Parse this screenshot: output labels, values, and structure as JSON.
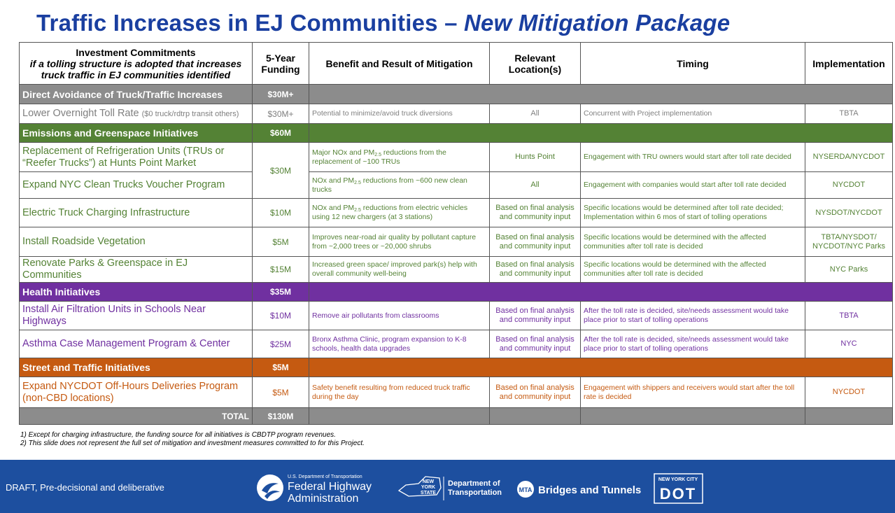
{
  "header": {
    "title": "Traffic Increases in EJ Communities – ",
    "title_emphasis": "New Mitigation Package"
  },
  "table": {
    "columns": [
      {
        "title": "Investment Commitments",
        "subtitle": "if a tolling structure is adopted that increases truck traffic in EJ communities identified"
      },
      {
        "title": "5-Year Funding"
      },
      {
        "title": "Benefit and Result of Mitigation"
      },
      {
        "title": "Relevant Location(s)"
      },
      {
        "title": "Timing"
      },
      {
        "title": "Implementation"
      }
    ],
    "sections": [
      {
        "name": "Direct Avoidance of Truck/Traffic Increases",
        "funding": "$30M+",
        "color": "#8c8c8c",
        "text_color": "#7f7f7f",
        "rows": [
          {
            "commitment": [
              "Lower Overnight Toll Rate ",
              {
                "small": "($0 truck/rdtrp transit others)"
              }
            ],
            "funding": "$30M+",
            "benefit": "Potential to minimize/avoid truck diversions",
            "location": "All",
            "timing": "Concurrent with Project implementation",
            "implementation": "TBTA"
          }
        ]
      },
      {
        "name": "Emissions and Greenspace Initiatives",
        "funding": "$60M",
        "color": "#548235",
        "text_color": "#548235",
        "rows": [
          {
            "commitment": "Replacement of Refrigeration Units (TRUs or “Reefer Trucks”) at Hunts Point Market",
            "funding": "$30M",
            "benefit": [
              "Major NOx and PM",
              {
                "sub": "2.5"
              },
              " reductions from the replacement of ~100 TRUs"
            ],
            "location": "Hunts Point",
            "timing": "Engagement with TRU owners would start after toll rate decided",
            "implementation": "NYSERDA/NYCDOT"
          },
          {
            "commitment": "Expand NYC Clean Trucks Voucher Program",
            "funding": null,
            "benefit": [
              "NOx and PM",
              {
                "sub": "2.5"
              },
              " reductions from ~600 new clean trucks"
            ],
            "location": "All",
            "timing": "Engagement with companies would start after toll rate decided",
            "implementation": "NYCDOT"
          },
          {
            "commitment": "Electric Truck Charging Infrastructure",
            "funding": "$10M",
            "benefit": [
              "NOx and PM",
              {
                "sub": "2.5"
              },
              " reductions from electric vehicles using 12 new chargers (at 3 stations)"
            ],
            "location": "Based on final analysis and community input",
            "timing": "Specific locations would be determined after toll rate decided; Implementation within 6 mos of start of tolling operations",
            "implementation": "NYSDOT/NYCDOT"
          },
          {
            "commitment": "Install Roadside Vegetation",
            "funding": "$5M",
            "benefit": "Improves near-road air quality by pollutant capture from ~2,000 trees or ~20,000 shrubs",
            "location": "Based on final analysis and community input",
            "timing": "Specific locations would be determined with the affected communities after toll rate is decided",
            "implementation": "TBTA/NYSDOT/ NYCDOT/NYC Parks"
          },
          {
            "commitment": "Renovate Parks & Greenspace in EJ Communities",
            "funding": "$15M",
            "benefit": "Increased green space/ improved park(s) help with overall community well-being",
            "location": "Based on final analysis and community input",
            "timing": "Specific locations would be determined with the affected communities after toll rate is decided",
            "implementation": "NYC Parks"
          }
        ]
      },
      {
        "name": "Health Initiatives",
        "funding": "$35M",
        "color": "#7030a0",
        "text_color": "#7030a0",
        "rows": [
          {
            "commitment": "Install Air Filtration Units in Schools Near Highways",
            "funding": "$10M",
            "benefit": "Remove air pollutants from classrooms",
            "location": "Based on final analysis and community input",
            "timing": "After the toll rate is decided, site/needs assessment would take place prior to start of tolling operations",
            "implementation": "TBTA"
          },
          {
            "commitment": "Asthma Case Management Program & Center",
            "funding": "$25M",
            "benefit": "Bronx Asthma Clinic, program expansion to K-8 schools, health data upgrades",
            "location": "Based on final analysis and community input",
            "timing": "After the toll rate is decided, site/needs assessment would take place prior to start of tolling operations",
            "implementation": "NYC"
          }
        ]
      },
      {
        "name": "Street and Traffic Initiatives",
        "funding": "$5M",
        "color": "#c55a11",
        "text_color": "#c55a11",
        "rows": [
          {
            "commitment": "Expand NYCDOT Off-Hours Deliveries Program (non-CBD locations)",
            "funding": "$5M",
            "benefit": "Safety benefit resulting from reduced truck traffic during the day",
            "location": "Based on final analysis and community input",
            "timing": "Engagement with shippers and receivers would start after the toll rate is decided",
            "implementation": "NYCDOT"
          }
        ]
      }
    ],
    "total": {
      "label": "TOTAL",
      "funding": "$130M"
    }
  },
  "notes": [
    "1) Except for charging infrastructure, the funding source for all initiatives is CBDTP program revenues.",
    "2) This slide does not represent the full set of mitigation and investment measures committed to for this Project."
  ],
  "footer": {
    "draft": "DRAFT, Pre-decisional and deliberative",
    "fhwa_small": "U.S. Department of Transportation",
    "fhwa_line1": "Federal Highway",
    "fhwa_line2": "Administration",
    "nys_line1": "NEW",
    "nys_line2": "YORK",
    "nys_line3": "STATE",
    "nysdot_line1": "Department of",
    "nysdot_line2": "Transportation",
    "mta": "MTA",
    "bt": "Bridges and Tunnels",
    "nyc": "NEW YORK CITY",
    "dot": "DOT"
  }
}
